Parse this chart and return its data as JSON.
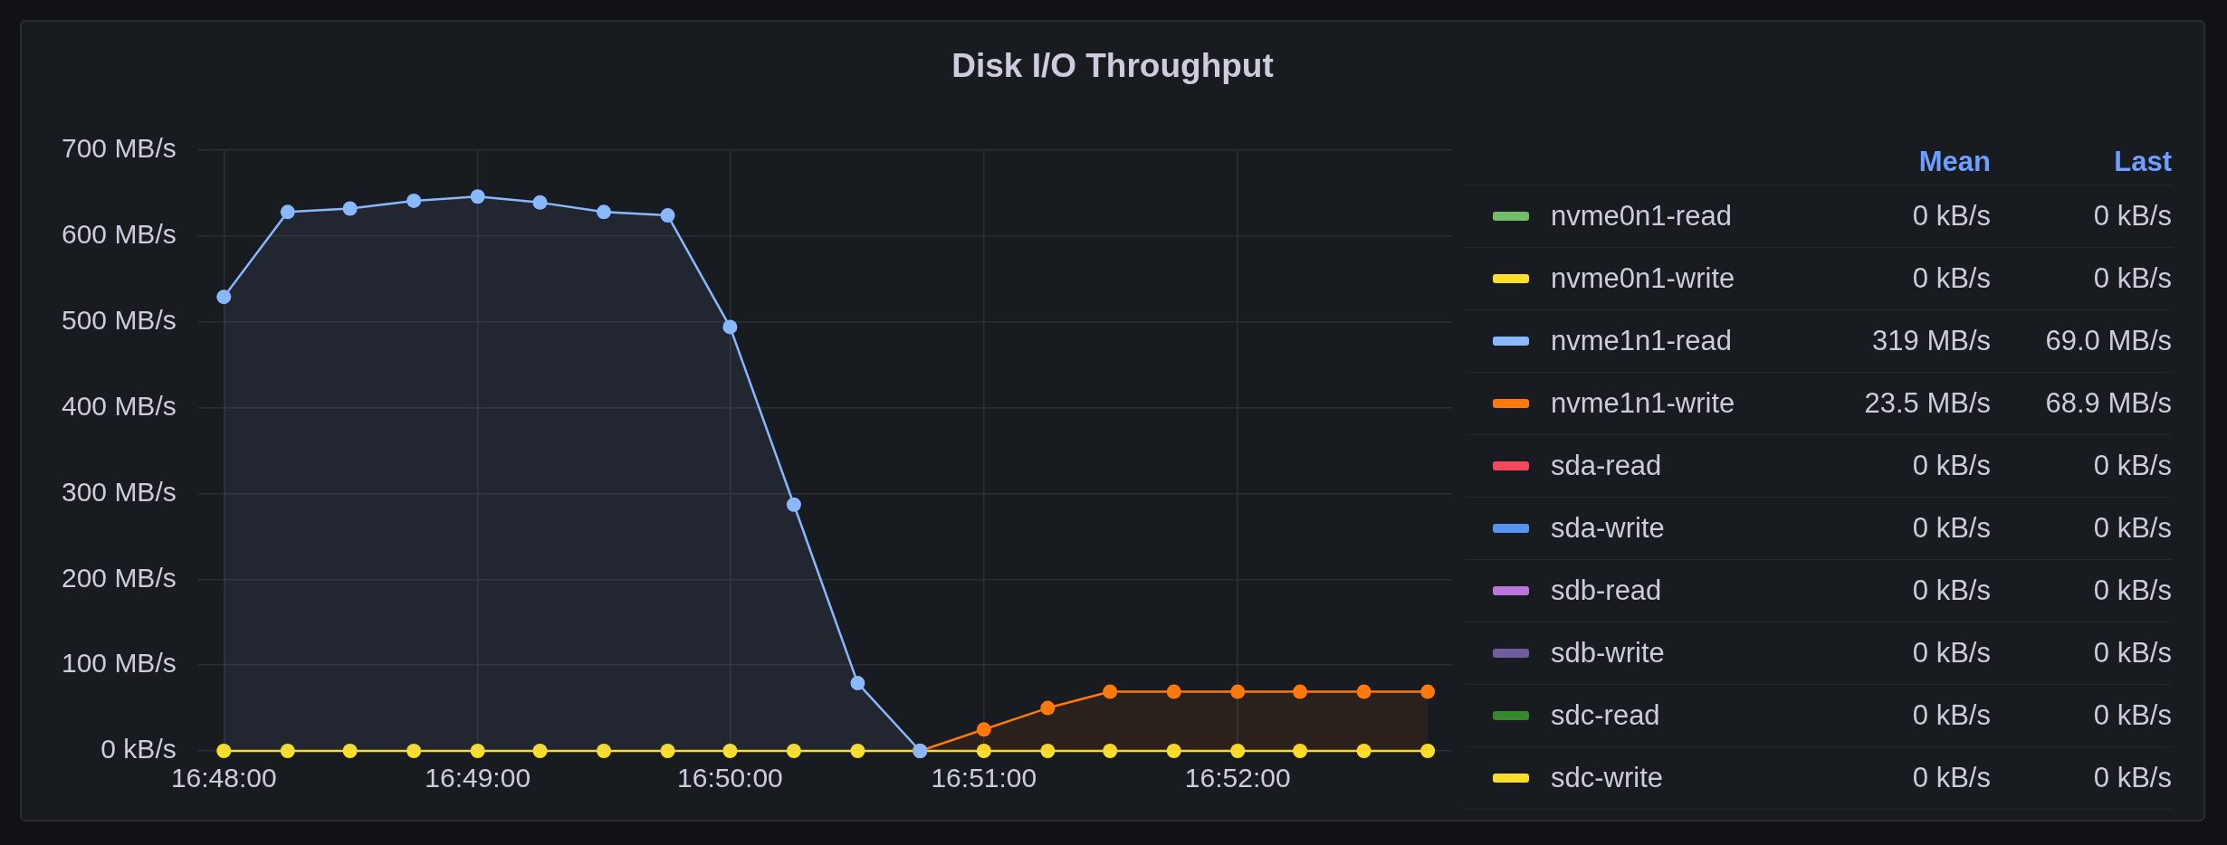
{
  "chart_data": {
    "type": "area",
    "title": "Disk I/O Throughput",
    "x": [
      16.8,
      16.8042,
      16.8083,
      16.8125,
      16.8167,
      16.8208,
      16.825,
      16.8292,
      16.8333,
      16.8375,
      16.8417,
      16.8458,
      16.85,
      16.8542,
      16.8583,
      16.8625,
      16.8667,
      16.8708,
      16.875,
      16.8792
    ],
    "xlim": [
      16.7983,
      16.8808
    ],
    "xticks": [
      {
        "value": 16.8,
        "label": "16:48:00"
      },
      {
        "value": 16.8167,
        "label": "16:49:00"
      },
      {
        "value": 16.8333,
        "label": "16:50:00"
      },
      {
        "value": 16.85,
        "label": "16:51:00"
      },
      {
        "value": 16.8667,
        "label": "16:52:00"
      }
    ],
    "ylim": [
      0,
      700
    ],
    "yticks": [
      {
        "value": 0,
        "label": "0 kB/s"
      },
      {
        "value": 100,
        "label": "100 MB/s"
      },
      {
        "value": 200,
        "label": "200 MB/s"
      },
      {
        "value": 300,
        "label": "300 MB/s"
      },
      {
        "value": 400,
        "label": "400 MB/s"
      },
      {
        "value": 500,
        "label": "500 MB/s"
      },
      {
        "value": 600,
        "label": "600 MB/s"
      },
      {
        "value": 700,
        "label": "700 MB/s"
      }
    ],
    "grid": true,
    "legend": "right",
    "marker": "circle",
    "series": [
      {
        "name": "nvme0n1-read",
        "color": "#73bf69",
        "values": [
          null,
          null,
          null,
          null,
          null,
          null,
          null,
          null,
          null,
          null,
          null,
          null,
          null,
          null,
          null,
          null,
          null,
          null,
          null,
          null
        ]
      },
      {
        "name": "nvme0n1-write",
        "color": "#fade2a",
        "values": [
          null,
          null,
          null,
          null,
          null,
          null,
          null,
          null,
          null,
          null,
          null,
          null,
          null,
          null,
          null,
          null,
          null,
          null,
          null,
          null
        ]
      },
      {
        "name": "nvme1n1-read",
        "color": "#8ab8ff",
        "values": [
          529,
          628,
          632,
          641,
          646,
          639,
          628,
          624,
          494,
          287,
          79,
          0,
          null,
          null,
          null,
          null,
          null,
          null,
          null,
          null
        ]
      },
      {
        "name": "nvme1n1-write",
        "color": "#ff780a",
        "values": [
          null,
          null,
          null,
          null,
          null,
          null,
          null,
          null,
          null,
          null,
          null,
          0,
          25,
          50,
          69,
          69,
          69,
          69,
          69,
          69
        ]
      },
      {
        "name": "sda-read",
        "color": "#f2495c",
        "values": [
          null,
          null,
          null,
          null,
          null,
          null,
          null,
          null,
          null,
          null,
          null,
          null,
          null,
          null,
          null,
          null,
          null,
          null,
          null,
          null
        ]
      },
      {
        "name": "sda-write",
        "color": "#5794f2",
        "values": [
          null,
          null,
          null,
          null,
          null,
          null,
          null,
          null,
          null,
          null,
          null,
          null,
          null,
          null,
          null,
          null,
          null,
          null,
          null,
          null
        ]
      },
      {
        "name": "sdb-read",
        "color": "#b877d9",
        "values": [
          null,
          null,
          null,
          null,
          null,
          null,
          null,
          null,
          null,
          null,
          null,
          null,
          null,
          null,
          null,
          null,
          null,
          null,
          null,
          null
        ]
      },
      {
        "name": "sdb-write",
        "color": "#705da0",
        "values": [
          null,
          null,
          null,
          null,
          null,
          null,
          null,
          null,
          null,
          null,
          null,
          null,
          null,
          null,
          null,
          null,
          null,
          null,
          null,
          null
        ]
      },
      {
        "name": "sdc-read",
        "color": "#37872d",
        "values": [
          null,
          null,
          null,
          null,
          null,
          null,
          null,
          null,
          null,
          null,
          null,
          null,
          null,
          null,
          null,
          null,
          null,
          null,
          null,
          null
        ]
      },
      {
        "name": "sdc-write",
        "type": "line",
        "color": "#fade2a",
        "values": [
          0,
          0,
          0,
          0,
          0,
          0,
          0,
          0,
          0,
          0,
          0,
          0,
          0,
          0,
          0,
          0,
          0,
          0,
          0,
          0
        ]
      }
    ],
    "annotations": [
      "Mean",
      "Last",
      "0 kB/s",
      "0 kB/s",
      "0 kB/s",
      "0 kB/s",
      "319 MB/s",
      "69.0 MB/s",
      "23.5 MB/s",
      "68.9 MB/s",
      "0 kB/s",
      "0 kB/s",
      "0 kB/s",
      "0 kB/s",
      "0 kB/s",
      "0 kB/s",
      "0 kB/s",
      "0 kB/s",
      "0 kB/s",
      "0 kB/s",
      "0 kB/s",
      "0 kB/s"
    ]
  }
}
